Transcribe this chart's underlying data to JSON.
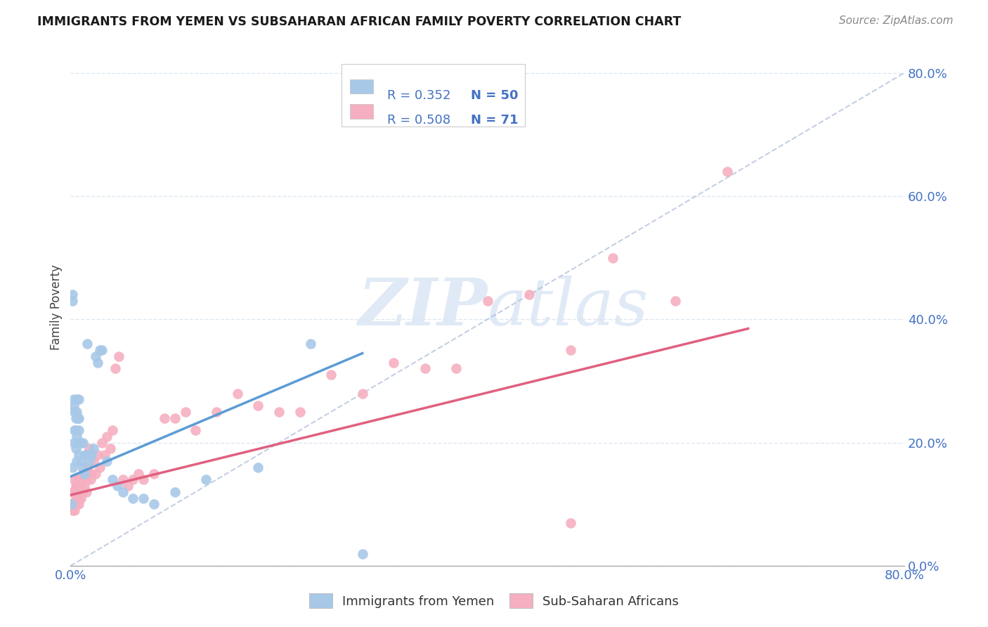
{
  "title": "IMMIGRANTS FROM YEMEN VS SUBSAHARAN AFRICAN FAMILY POVERTY CORRELATION CHART",
  "source": "Source: ZipAtlas.com",
  "ylabel": "Family Poverty",
  "legend1_label": "Immigrants from Yemen",
  "legend2_label": "Sub-Saharan Africans",
  "legend_R1": "R = 0.352",
  "legend_N1": "N = 50",
  "legend_R2": "R = 0.508",
  "legend_N2": "N = 71",
  "color_blue": "#a8c8e8",
  "color_pink": "#f5afc0",
  "color_blue_text": "#4472c4",
  "line_blue": "#5B9BD5",
  "line_pink": "#e06080",
  "line_dashed": "#aabcd8",
  "watermark_color": "#ccddf0",
  "background_color": "#ffffff",
  "grid_color": "#dce6f0",
  "right_yticks": [
    0.0,
    0.2,
    0.4,
    0.6,
    0.8
  ],
  "right_yticklabels": [
    "0.0%",
    "20.0%",
    "40.0%",
    "60.0%",
    "80.0%"
  ],
  "xlim": [
    0.0,
    0.8
  ],
  "ylim": [
    0.0,
    0.84
  ],
  "blue_x": [
    0.001,
    0.002,
    0.002,
    0.002,
    0.003,
    0.003,
    0.003,
    0.004,
    0.004,
    0.005,
    0.005,
    0.005,
    0.006,
    0.006,
    0.006,
    0.006,
    0.007,
    0.007,
    0.008,
    0.008,
    0.008,
    0.008,
    0.009,
    0.01,
    0.01,
    0.011,
    0.012,
    0.013,
    0.014,
    0.015,
    0.016,
    0.018,
    0.02,
    0.022,
    0.024,
    0.026,
    0.028,
    0.03,
    0.035,
    0.04,
    0.045,
    0.05,
    0.06,
    0.07,
    0.08,
    0.1,
    0.13,
    0.18,
    0.23,
    0.28
  ],
  "blue_y": [
    0.1,
    0.44,
    0.43,
    0.16,
    0.27,
    0.26,
    0.2,
    0.25,
    0.22,
    0.24,
    0.22,
    0.19,
    0.27,
    0.25,
    0.21,
    0.17,
    0.24,
    0.2,
    0.27,
    0.24,
    0.22,
    0.18,
    0.2,
    0.2,
    0.17,
    0.16,
    0.2,
    0.15,
    0.18,
    0.18,
    0.36,
    0.17,
    0.18,
    0.19,
    0.34,
    0.33,
    0.35,
    0.35,
    0.17,
    0.14,
    0.13,
    0.12,
    0.11,
    0.11,
    0.1,
    0.12,
    0.14,
    0.16,
    0.36,
    0.02
  ],
  "pink_x": [
    0.001,
    0.002,
    0.002,
    0.003,
    0.003,
    0.004,
    0.004,
    0.005,
    0.005,
    0.005,
    0.006,
    0.006,
    0.007,
    0.007,
    0.008,
    0.008,
    0.008,
    0.009,
    0.009,
    0.01,
    0.01,
    0.011,
    0.012,
    0.012,
    0.013,
    0.014,
    0.015,
    0.015,
    0.016,
    0.017,
    0.018,
    0.019,
    0.02,
    0.022,
    0.024,
    0.026,
    0.028,
    0.03,
    0.033,
    0.035,
    0.038,
    0.04,
    0.043,
    0.046,
    0.05,
    0.055,
    0.06,
    0.065,
    0.07,
    0.08,
    0.09,
    0.1,
    0.11,
    0.12,
    0.14,
    0.16,
    0.18,
    0.2,
    0.22,
    0.25,
    0.28,
    0.31,
    0.34,
    0.37,
    0.4,
    0.44,
    0.48,
    0.52,
    0.58,
    0.63,
    0.48
  ],
  "pink_y": [
    0.1,
    0.12,
    0.09,
    0.14,
    0.1,
    0.12,
    0.09,
    0.13,
    0.11,
    0.1,
    0.13,
    0.1,
    0.14,
    0.11,
    0.13,
    0.11,
    0.1,
    0.14,
    0.12,
    0.13,
    0.11,
    0.14,
    0.12,
    0.15,
    0.13,
    0.15,
    0.14,
    0.12,
    0.16,
    0.15,
    0.19,
    0.14,
    0.15,
    0.17,
    0.15,
    0.18,
    0.16,
    0.2,
    0.18,
    0.21,
    0.19,
    0.22,
    0.32,
    0.34,
    0.14,
    0.13,
    0.14,
    0.15,
    0.14,
    0.15,
    0.24,
    0.24,
    0.25,
    0.22,
    0.25,
    0.28,
    0.26,
    0.25,
    0.25,
    0.31,
    0.28,
    0.33,
    0.32,
    0.32,
    0.43,
    0.44,
    0.35,
    0.5,
    0.43,
    0.64,
    0.07
  ],
  "blue_line_x0": 0.0,
  "blue_line_y0": 0.145,
  "blue_line_x1": 0.28,
  "blue_line_y1": 0.345,
  "pink_line_x0": 0.0,
  "pink_line_y0": 0.115,
  "pink_line_x1": 0.65,
  "pink_line_y1": 0.385,
  "dash_line_x0": 0.0,
  "dash_line_y0": 0.0,
  "dash_line_x1": 0.8,
  "dash_line_y1": 0.8
}
